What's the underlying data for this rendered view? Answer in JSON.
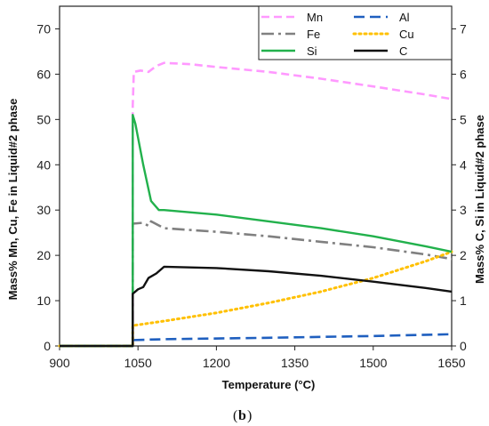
{
  "chart_data": {
    "type": "line",
    "xlabel": "Temperature (°C)",
    "ylabel_left": "Mass% Mn, Cu, Fe in Liquid#2 phase",
    "ylabel_right": "Mass% C, Si in Liquid#2 phase",
    "caption_letter": "b",
    "xlim": [
      900,
      1650
    ],
    "ylim_left": [
      0,
      75
    ],
    "ylim_right": [
      0,
      7.5
    ],
    "x_ticks": [
      900,
      1050,
      1200,
      1350,
      1500,
      1650
    ],
    "y_left_ticks": [
      0,
      10,
      20,
      30,
      40,
      50,
      60,
      70
    ],
    "y_right_ticks": [
      0,
      1,
      2,
      3,
      4,
      5,
      6,
      7
    ],
    "legend_position": "top-right",
    "series": [
      {
        "name": "Mn",
        "axis": "left",
        "color": "#ff99ff",
        "style": "dash",
        "points": [
          [
            900,
            0
          ],
          [
            1040,
            0
          ],
          [
            1040,
            53
          ],
          [
            1042,
            60.5
          ],
          [
            1055,
            60.8
          ],
          [
            1070,
            60.5
          ],
          [
            1085,
            61.8
          ],
          [
            1100,
            62.5
          ],
          [
            1150,
            62.2
          ],
          [
            1200,
            61.6
          ],
          [
            1300,
            60.5
          ],
          [
            1400,
            59
          ],
          [
            1500,
            57.3
          ],
          [
            1600,
            55.5
          ],
          [
            1650,
            54.5
          ]
        ]
      },
      {
        "name": "Al",
        "axis": "left",
        "color": "#1f5fbf",
        "style": "longdash",
        "points": [
          [
            900,
            0
          ],
          [
            1040,
            0
          ],
          [
            1040,
            1.3
          ],
          [
            1100,
            1.5
          ],
          [
            1300,
            1.8
          ],
          [
            1500,
            2.2
          ],
          [
            1650,
            2.6
          ]
        ]
      },
      {
        "name": "Fe",
        "axis": "left",
        "color": "#808080",
        "style": "dashdot",
        "points": [
          [
            900,
            0
          ],
          [
            1040,
            0
          ],
          [
            1040,
            27
          ],
          [
            1060,
            27.2
          ],
          [
            1070,
            26.5
          ],
          [
            1075,
            27.5
          ],
          [
            1100,
            26
          ],
          [
            1200,
            25.2
          ],
          [
            1300,
            24.2
          ],
          [
            1400,
            23
          ],
          [
            1500,
            21.8
          ],
          [
            1600,
            20.2
          ],
          [
            1650,
            19.2
          ]
        ]
      },
      {
        "name": "Cu",
        "axis": "left",
        "color": "#ffc000",
        "style": "dot",
        "points": [
          [
            900,
            0
          ],
          [
            1040,
            0
          ],
          [
            1040,
            4.5
          ],
          [
            1100,
            5.5
          ],
          [
            1200,
            7.3
          ],
          [
            1300,
            9.5
          ],
          [
            1400,
            12
          ],
          [
            1500,
            15
          ],
          [
            1600,
            18.7
          ],
          [
            1650,
            20.8
          ]
        ]
      },
      {
        "name": "Si",
        "axis": "right",
        "color": "#22b14c",
        "style": "solid",
        "points": [
          [
            900,
            0
          ],
          [
            1040,
            0
          ],
          [
            1040,
            5.1
          ],
          [
            1045,
            4.9
          ],
          [
            1060,
            4.0
          ],
          [
            1075,
            3.2
          ],
          [
            1090,
            3.0
          ],
          [
            1100,
            3.0
          ],
          [
            1200,
            2.9
          ],
          [
            1300,
            2.75
          ],
          [
            1400,
            2.6
          ],
          [
            1500,
            2.42
          ],
          [
            1600,
            2.2
          ],
          [
            1650,
            2.08
          ]
        ]
      },
      {
        "name": "C",
        "axis": "right",
        "color": "#111111",
        "style": "solid",
        "points": [
          [
            900,
            0
          ],
          [
            1040,
            0
          ],
          [
            1040,
            1.15
          ],
          [
            1050,
            1.25
          ],
          [
            1060,
            1.3
          ],
          [
            1070,
            1.5
          ],
          [
            1085,
            1.6
          ],
          [
            1100,
            1.75
          ],
          [
            1200,
            1.72
          ],
          [
            1300,
            1.65
          ],
          [
            1400,
            1.55
          ],
          [
            1500,
            1.42
          ],
          [
            1600,
            1.28
          ],
          [
            1650,
            1.2
          ]
        ]
      }
    ],
    "legend_rows": [
      [
        "Mn",
        "Al"
      ],
      [
        "Fe",
        "Cu"
      ],
      [
        "Si",
        "C"
      ]
    ]
  }
}
